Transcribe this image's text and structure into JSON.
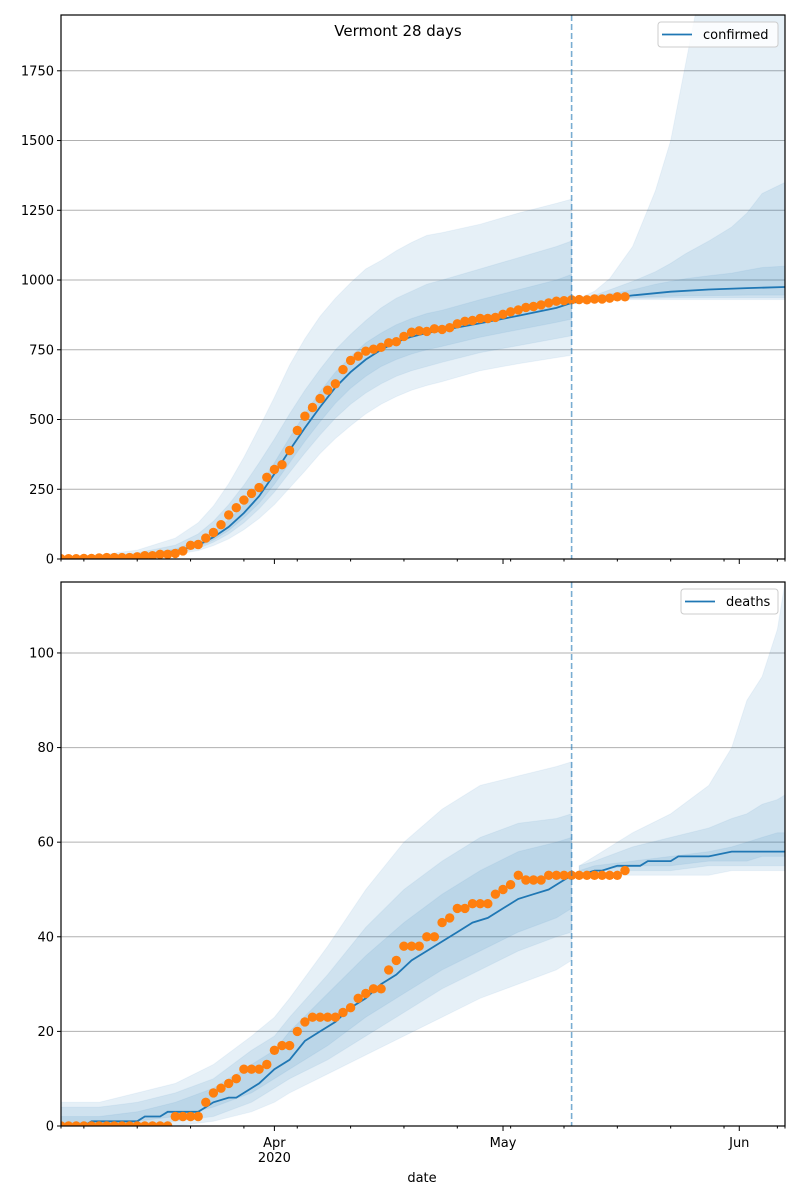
{
  "figure": {
    "xlabel": "date",
    "x_ticks": [
      {
        "label": "Apr",
        "sublabel": "2020",
        "day": 28
      },
      {
        "label": "May",
        "sublabel": "",
        "day": 58
      },
      {
        "label": "Jun",
        "sublabel": "",
        "day": 89
      }
    ],
    "x_range_days": [
      0,
      95
    ],
    "x_origin_date": "2020-03-04",
    "forecast_start_day": 67,
    "colors": {
      "line": "#1f77b4",
      "obs": "#ff7f0e",
      "band": "#1f77b4",
      "grid": "#b0b0b0",
      "vline": "#1f77b4"
    }
  },
  "chart_data": [
    {
      "type": "line",
      "title": "Vermont 28 days",
      "legend": "confirmed",
      "legend_position": "top-right",
      "xlabel": "",
      "ylabel": "",
      "ylim": [
        0,
        1950
      ],
      "yticks": [
        0,
        250,
        500,
        750,
        1000,
        1250,
        1500,
        1750
      ],
      "grid": "y",
      "observed": {
        "name": "observed",
        "days": [
          0,
          1,
          2,
          3,
          4,
          5,
          6,
          7,
          8,
          9,
          10,
          11,
          12,
          13,
          14,
          15,
          16,
          17,
          18,
          19,
          20,
          21,
          22,
          23,
          24,
          25,
          26,
          27,
          28,
          29,
          30,
          31,
          32,
          33,
          34,
          35,
          36,
          37,
          38,
          39,
          40,
          41,
          42,
          43,
          44,
          45,
          46,
          47,
          48,
          49,
          50,
          51,
          52,
          53,
          54,
          55,
          56,
          57,
          58,
          59,
          60,
          61,
          62,
          63,
          64,
          65,
          66,
          67,
          68,
          69,
          70,
          71,
          72,
          73,
          74
        ],
        "values": [
          1,
          1,
          1,
          2,
          2,
          4,
          5,
          5,
          5,
          5,
          8,
          12,
          12,
          17,
          17,
          20,
          29,
          49,
          52,
          75,
          95,
          123,
          158,
          184,
          211,
          235,
          256,
          293,
          321,
          338,
          389,
          461,
          512,
          543,
          575,
          605,
          628,
          679,
          712,
          727,
          745,
          752,
          759,
          775,
          779,
          798,
          813,
          818,
          816,
          825,
          823,
          829,
          843,
          852,
          855,
          862,
          862,
          866,
          877,
          886,
          893,
          902,
          905,
          911,
          918,
          924,
          926,
          929,
          930,
          929,
          932,
          932,
          935,
          940,
          940
        ]
      },
      "median": {
        "days": [
          0,
          5,
          10,
          15,
          18,
          20,
          22,
          24,
          26,
          28,
          30,
          32,
          34,
          36,
          38,
          40,
          42,
          44,
          46,
          48,
          50,
          55,
          60,
          65,
          67,
          70,
          75,
          80,
          85,
          90,
          95
        ],
        "values": [
          2,
          5,
          12,
          28,
          50,
          78,
          115,
          165,
          225,
          305,
          390,
          470,
          545,
          615,
          670,
          715,
          750,
          778,
          797,
          810,
          820,
          845,
          872,
          900,
          918,
          928,
          945,
          958,
          966,
          971,
          975
        ]
      },
      "bands": [
        {
          "name": "outer",
          "days": [
            0,
            5,
            10,
            15,
            18,
            20,
            22,
            24,
            26,
            28,
            30,
            32,
            34,
            36,
            38,
            40,
            42,
            44,
            46,
            48,
            50,
            55,
            60,
            65,
            67,
            68,
            70,
            72,
            75,
            78,
            80,
            82,
            85,
            88,
            90,
            92,
            95
          ],
          "lower": [
            0,
            2,
            6,
            16,
            30,
            48,
            72,
            105,
            145,
            195,
            255,
            315,
            378,
            432,
            478,
            520,
            555,
            582,
            605,
            622,
            636,
            675,
            700,
            722,
            730,
            930,
            930,
            930,
            930,
            930,
            930,
            930,
            930,
            930,
            930,
            930,
            930
          ],
          "upper": [
            5,
            14,
            32,
            75,
            130,
            190,
            270,
            365,
            470,
            580,
            695,
            790,
            870,
            935,
            990,
            1040,
            1070,
            1105,
            1135,
            1160,
            1170,
            1200,
            1240,
            1275,
            1290,
            935,
            960,
            1005,
            1120,
            1320,
            1500,
            1780,
            2200,
            2400,
            2400,
            2400,
            2400
          ]
        },
        {
          "name": "middle",
          "days": [
            0,
            5,
            10,
            15,
            18,
            20,
            22,
            24,
            26,
            28,
            30,
            32,
            34,
            36,
            38,
            40,
            42,
            44,
            46,
            48,
            50,
            55,
            60,
            65,
            67,
            68,
            70,
            72,
            75,
            78,
            80,
            82,
            85,
            88,
            90,
            92,
            95
          ],
          "lower": [
            0,
            3,
            8,
            20,
            38,
            60,
            90,
            130,
            180,
            240,
            310,
            380,
            445,
            505,
            555,
            595,
            628,
            655,
            675,
            690,
            705,
            740,
            765,
            790,
            800,
            930,
            930,
            932,
            935,
            935,
            936,
            936,
            936,
            936,
            936,
            936,
            936
          ],
          "upper": [
            4,
            10,
            22,
            50,
            90,
            135,
            195,
            265,
            345,
            430,
            520,
            605,
            680,
            750,
            805,
            855,
            900,
            935,
            960,
            985,
            1000,
            1040,
            1080,
            1120,
            1140,
            932,
            945,
            965,
            995,
            1030,
            1060,
            1095,
            1140,
            1190,
            1240,
            1310,
            1350
          ]
        },
        {
          "name": "inner",
          "days": [
            0,
            5,
            10,
            15,
            18,
            20,
            22,
            24,
            26,
            28,
            30,
            32,
            34,
            36,
            38,
            40,
            42,
            44,
            46,
            48,
            50,
            55,
            60,
            65,
            67,
            68,
            70,
            72,
            75,
            78,
            80,
            82,
            85,
            88,
            90,
            92,
            95
          ],
          "lower": [
            1,
            4,
            10,
            24,
            44,
            68,
            102,
            148,
            200,
            268,
            345,
            422,
            492,
            558,
            612,
            655,
            690,
            715,
            735,
            750,
            762,
            795,
            822,
            848,
            860,
            928,
            930,
            933,
            937,
            940,
            942,
            943,
            944,
            945,
            946,
            946,
            946
          ],
          "upper": [
            3,
            7,
            16,
            36,
            64,
            98,
            140,
            195,
            260,
            345,
            435,
            520,
            600,
            670,
            725,
            775,
            810,
            840,
            862,
            880,
            892,
            930,
            965,
            1000,
            1020,
            930,
            940,
            950,
            965,
            985,
            995,
            1005,
            1015,
            1025,
            1035,
            1045,
            1050
          ]
        }
      ]
    },
    {
      "type": "line",
      "title": "",
      "legend": "deaths",
      "legend_position": "top-right",
      "xlabel": "date",
      "ylabel": "",
      "ylim": [
        0,
        115
      ],
      "yticks": [
        0,
        20,
        40,
        60,
        80,
        100
      ],
      "grid": "y",
      "observed": {
        "name": "observed",
        "days": [
          0,
          1,
          2,
          3,
          4,
          5,
          6,
          7,
          8,
          9,
          10,
          11,
          12,
          13,
          14,
          15,
          16,
          17,
          18,
          19,
          20,
          21,
          22,
          23,
          24,
          25,
          26,
          27,
          28,
          29,
          30,
          31,
          32,
          33,
          34,
          35,
          36,
          37,
          38,
          39,
          40,
          41,
          42,
          43,
          44,
          45,
          46,
          47,
          48,
          49,
          50,
          51,
          52,
          53,
          54,
          55,
          56,
          57,
          58,
          59,
          60,
          61,
          62,
          63,
          64,
          65,
          66,
          67,
          68,
          69,
          70,
          71,
          72,
          73,
          74
        ],
        "values": [
          0,
          0,
          0,
          0,
          0,
          0,
          0,
          0,
          0,
          0,
          0,
          0,
          0,
          0,
          0,
          2,
          2,
          2,
          2,
          5,
          7,
          8,
          9,
          10,
          12,
          12,
          12,
          13,
          16,
          17,
          17,
          20,
          22,
          23,
          23,
          23,
          23,
          24,
          25,
          27,
          28,
          29,
          29,
          33,
          35,
          38,
          38,
          38,
          40,
          40,
          43,
          44,
          46,
          46,
          47,
          47,
          47,
          49,
          50,
          51,
          53,
          52,
          52,
          52,
          53,
          53,
          53,
          53,
          53,
          53,
          53,
          53,
          53,
          53,
          54
        ]
      },
      "median": {
        "days": [
          0,
          3,
          4,
          10,
          11,
          13,
          14,
          18,
          19,
          20,
          22,
          23,
          24,
          26,
          28,
          30,
          32,
          34,
          36,
          38,
          40,
          42,
          44,
          46,
          48,
          50,
          52,
          54,
          56,
          58,
          60,
          62,
          64,
          66,
          67,
          68,
          70,
          71,
          73,
          74,
          76,
          77,
          80,
          81,
          84,
          85,
          88,
          90,
          95
        ],
        "values": [
          0,
          0,
          1,
          1,
          2,
          2,
          3,
          3,
          4,
          5,
          6,
          6,
          7,
          9,
          12,
          14,
          18,
          20,
          22,
          25,
          27,
          30,
          32,
          35,
          37,
          39,
          41,
          43,
          44,
          46,
          48,
          49,
          50,
          52,
          53,
          53,
          54,
          54,
          55,
          55,
          55,
          56,
          56,
          57,
          57,
          57,
          58,
          58,
          58
        ]
      },
      "bands": [
        {
          "name": "outer",
          "days": [
            0,
            5,
            10,
            15,
            20,
            25,
            28,
            30,
            35,
            40,
            45,
            50,
            55,
            60,
            65,
            67,
            68,
            70,
            75,
            80,
            85,
            88,
            90,
            92,
            94,
            95
          ],
          "lower": [
            0,
            0,
            0,
            0,
            1,
            3,
            5,
            7,
            11,
            15,
            19,
            23,
            27,
            30,
            33,
            35,
            53,
            53,
            53,
            53,
            53,
            54,
            54,
            54,
            54,
            54
          ],
          "upper": [
            5,
            5,
            7,
            9,
            13,
            19,
            23,
            27,
            38,
            50,
            60,
            67,
            72,
            74,
            76,
            77,
            55,
            57,
            62,
            66,
            72,
            80,
            90,
            95,
            105,
            115
          ]
        },
        {
          "name": "middle",
          "days": [
            0,
            5,
            10,
            15,
            20,
            25,
            28,
            30,
            35,
            40,
            45,
            50,
            55,
            60,
            65,
            67,
            68,
            70,
            75,
            80,
            85,
            88,
            90,
            92,
            94,
            95
          ],
          "lower": [
            0,
            0,
            0,
            1,
            2,
            5,
            8,
            10,
            14,
            19,
            24,
            29,
            33,
            37,
            40,
            41,
            53,
            54,
            54,
            54,
            55,
            55,
            55,
            55,
            55,
            55
          ],
          "upper": [
            4,
            4,
            5,
            7,
            10,
            16,
            19,
            23,
            32,
            42,
            50,
            56,
            61,
            64,
            65,
            66,
            55,
            56,
            59,
            61,
            63,
            65,
            66,
            68,
            69,
            70
          ]
        },
        {
          "name": "inner",
          "days": [
            0,
            5,
            10,
            15,
            20,
            25,
            28,
            30,
            35,
            40,
            45,
            50,
            55,
            60,
            65,
            67,
            68,
            70,
            75,
            80,
            85,
            88,
            90,
            92,
            94,
            95
          ],
          "lower": [
            0,
            0,
            1,
            2,
            4,
            7,
            10,
            12,
            17,
            23,
            28,
            33,
            37,
            41,
            44,
            46,
            54,
            54,
            55,
            55,
            56,
            56,
            56,
            57,
            57,
            57
          ],
          "upper": [
            2,
            2,
            3,
            5,
            8,
            13,
            16,
            20,
            28,
            36,
            43,
            49,
            54,
            58,
            60,
            61,
            54,
            55,
            56,
            57,
            58,
            59,
            60,
            61,
            62,
            62
          ]
        }
      ]
    }
  ]
}
